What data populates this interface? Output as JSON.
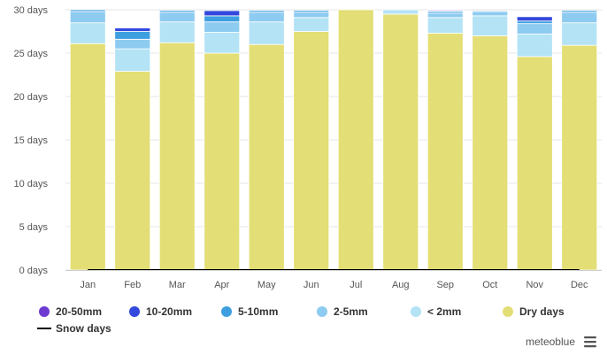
{
  "chart_data": {
    "type": "bar",
    "stacked": true,
    "categories": [
      "Jan",
      "Feb",
      "Mar",
      "Apr",
      "May",
      "Jun",
      "Jul",
      "Aug",
      "Sep",
      "Oct",
      "Nov",
      "Dec"
    ],
    "ylim": [
      0,
      30
    ],
    "yticks": [
      0,
      5,
      10,
      15,
      20,
      25,
      30
    ],
    "ytick_labels": [
      "0 days",
      "5 days",
      "10 days",
      "15 days",
      "20 days",
      "25 days",
      "30 days"
    ],
    "grid": true,
    "legend_position": "bottom",
    "series": [
      {
        "name": "Dry days",
        "color": "#e3de75",
        "values": [
          26.1,
          22.9,
          26.2,
          25.0,
          26.0,
          27.5,
          30.0,
          29.5,
          27.3,
          27.0,
          24.6,
          25.9
        ]
      },
      {
        "name": "< 2mm",
        "color": "#b3e3f5",
        "values": [
          2.4,
          2.6,
          2.4,
          2.4,
          2.6,
          1.6,
          0.0,
          0.5,
          1.8,
          2.3,
          2.6,
          2.6
        ]
      },
      {
        "name": "2-5mm",
        "color": "#8ecbf0",
        "values": [
          1.3,
          1.1,
          1.1,
          1.2,
          1.1,
          0.6,
          0.0,
          0.0,
          0.5,
          0.5,
          1.2,
          1.2
        ]
      },
      {
        "name": "5-10mm",
        "color": "#3d9fe0",
        "values": [
          0.2,
          0.9,
          0.2,
          0.7,
          0.2,
          0.2,
          0.0,
          0.0,
          0.2,
          0.1,
          0.3,
          0.2
        ]
      },
      {
        "name": "10-20mm",
        "color": "#3348dc",
        "values": [
          0.0,
          0.4,
          0.0,
          0.6,
          0.0,
          0.0,
          0.0,
          0.0,
          0.1,
          0.0,
          0.5,
          0.0
        ]
      },
      {
        "name": "20-50mm",
        "color": "#6d3bd1",
        "values": [
          0.0,
          0.0,
          0.0,
          0.0,
          0.0,
          0.0,
          0.0,
          0.0,
          0.1,
          0.0,
          0.0,
          0.0
        ]
      }
    ],
    "line_series": [
      {
        "name": "Snow days",
        "color": "#000000",
        "values": [
          0,
          0,
          0,
          0,
          0,
          0,
          0,
          0,
          0,
          0,
          0,
          0
        ]
      }
    ],
    "legend": [
      {
        "name": "20-50mm",
        "color": "#6d3bd1",
        "symbol": "circle"
      },
      {
        "name": "10-20mm",
        "color": "#3348dc",
        "symbol": "circle"
      },
      {
        "name": "5-10mm",
        "color": "#3d9fe0",
        "symbol": "circle"
      },
      {
        "name": "2-5mm",
        "color": "#8ecbf0",
        "symbol": "circle"
      },
      {
        "name": "< 2mm",
        "color": "#b3e3f5",
        "symbol": "circle"
      },
      {
        "name": "Dry days",
        "color": "#e3de75",
        "symbol": "circle"
      },
      {
        "name": "Snow days",
        "color": "#000000",
        "symbol": "line"
      }
    ]
  },
  "branding": {
    "label": "meteoblue"
  },
  "menu_icon": "hamburger-menu-icon"
}
